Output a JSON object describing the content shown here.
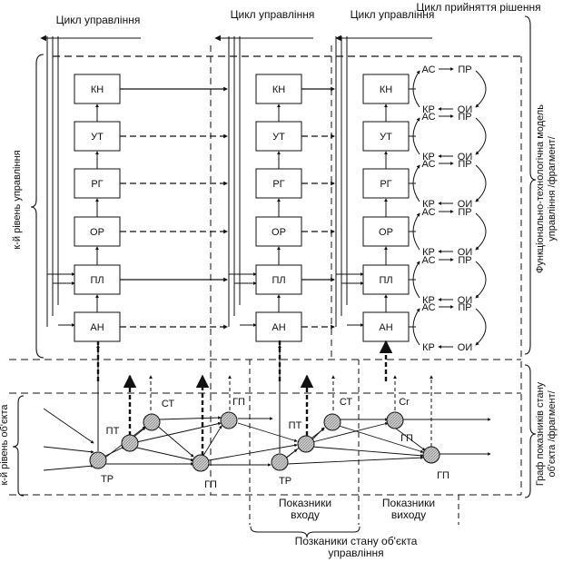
{
  "cycles": {
    "left": "Цикл управління",
    "middle": "Цикл управління",
    "right": "Цикл управління",
    "decision": "Цикл прийняття рішення"
  },
  "boxes": [
    "КН",
    "УТ",
    "РГ",
    "ОР",
    "ПЛ",
    "АН"
  ],
  "decision_loop": {
    "top_left": "АС",
    "top_right": "ПР",
    "bottom_left": "КР",
    "bottom_right": "ОИ"
  },
  "side_labels": {
    "left_top": "к-й рівень управління",
    "left_bottom": "к-й рівень об'єкта",
    "right_top": "Функціонально-технологічна модель управління /фрагмент/",
    "right_bottom": "Граф показників стану об'єкта /фрагмент/"
  },
  "nodes": {
    "tr1": "ТР",
    "pt1": "ПТ",
    "st1": "СТ",
    "gp1": "ГП",
    "gp2": "ГП",
    "pt2": "ПТ",
    "st2": "СТ",
    "tr2": "ТР",
    "ct3": "Сr",
    "gp3": "ГП",
    "gp4": "ГП"
  },
  "bottom_labels": {
    "input": "Показники входу",
    "output": "Показники виходу",
    "state": "Позканики стану об'єкта управління"
  }
}
